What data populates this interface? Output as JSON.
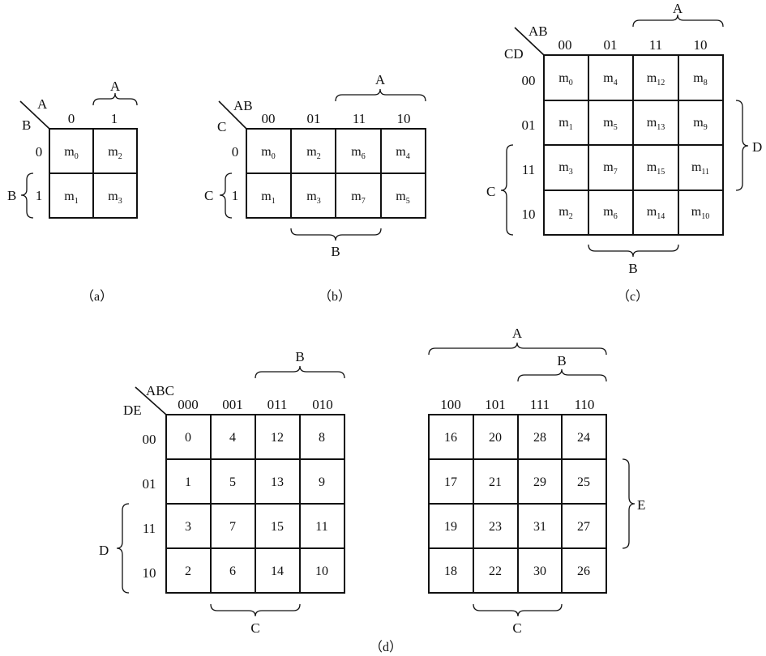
{
  "maps": {
    "a": {
      "caption": "（a）",
      "corner_top": "A",
      "corner_left": "B",
      "col_codes": [
        "0",
        "1"
      ],
      "row_codes": [
        "0",
        "1"
      ],
      "cells": [
        [
          "m0",
          "m2"
        ],
        [
          "m1",
          "m3"
        ]
      ],
      "brace_top": "A",
      "brace_left": "B"
    },
    "b": {
      "caption": "（b）",
      "corner_top": "AB",
      "corner_left": "C",
      "col_codes": [
        "00",
        "01",
        "11",
        "10"
      ],
      "row_codes": [
        "0",
        "1"
      ],
      "cells": [
        [
          "m0",
          "m2",
          "m6",
          "m4"
        ],
        [
          "m1",
          "m3",
          "m7",
          "m5"
        ]
      ],
      "brace_top": "A",
      "brace_left": "C",
      "brace_bottom": "B"
    },
    "c": {
      "caption": "（c）",
      "corner_top": "AB",
      "corner_left": "CD",
      "col_codes": [
        "00",
        "01",
        "11",
        "10"
      ],
      "row_codes": [
        "00",
        "01",
        "11",
        "10"
      ],
      "cells": [
        [
          "m0",
          "m4",
          "m12",
          "m8"
        ],
        [
          "m1",
          "m5",
          "m13",
          "m9"
        ],
        [
          "m3",
          "m7",
          "m15",
          "m11"
        ],
        [
          "m2",
          "m6",
          "m14",
          "m10"
        ]
      ],
      "brace_top": "A",
      "brace_left": "C",
      "brace_right": "D",
      "brace_bottom": "B"
    },
    "d": {
      "caption": "（d）",
      "corner_top": "ABC",
      "corner_left": "DE",
      "left": {
        "col_codes": [
          "000",
          "001",
          "011",
          "010"
        ],
        "row_codes": [
          "00",
          "01",
          "11",
          "10"
        ],
        "cells": [
          [
            "0",
            "4",
            "12",
            "8"
          ],
          [
            "1",
            "5",
            "13",
            "9"
          ],
          [
            "3",
            "7",
            "15",
            "11"
          ],
          [
            "2",
            "6",
            "14",
            "10"
          ]
        ],
        "brace_top": "B",
        "brace_left": "D",
        "brace_bottom": "C"
      },
      "right": {
        "col_codes": [
          "100",
          "101",
          "111",
          "110"
        ],
        "cells": [
          [
            "16",
            "20",
            "28",
            "24"
          ],
          [
            "17",
            "21",
            "29",
            "25"
          ],
          [
            "19",
            "23",
            "31",
            "27"
          ],
          [
            "18",
            "22",
            "30",
            "26"
          ]
        ],
        "brace_top_outer": "A",
        "brace_top_inner": "B",
        "brace_right": "E",
        "brace_bottom": "C"
      }
    }
  }
}
